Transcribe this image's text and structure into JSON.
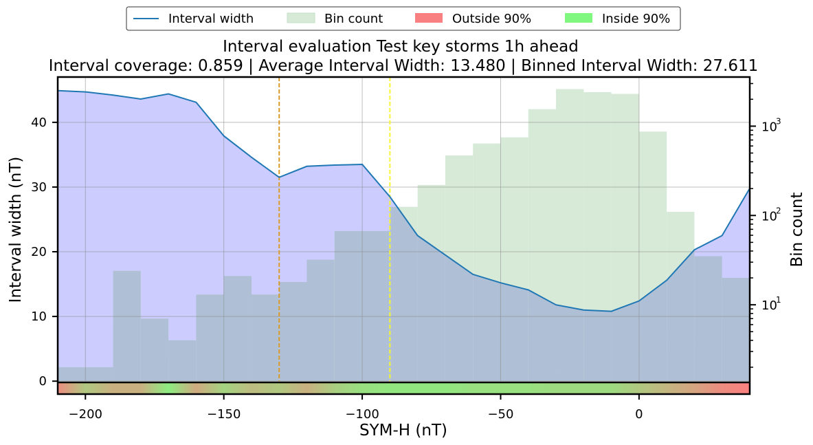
{
  "chart_data": {
    "type": "line",
    "title": "Interval evaluation Test key storms 1h ahead",
    "subtitle": "Interval coverage: 0.859 | Average Interval Width: 13.480 | Binned Interval Width: 27.611",
    "xlabel": "SYM-H (nT)",
    "ylabel": "Interval width (nT)",
    "y2label": "Bin count",
    "xlim": [
      -210,
      40
    ],
    "ylim": [
      -2,
      47
    ],
    "y2_scale": "log",
    "y2_log_range": [
      0.0,
      3.55
    ],
    "x_ticks": [
      -200,
      -150,
      -100,
      -50,
      0
    ],
    "x_tick_labels": [
      "−200",
      "−150",
      "−100",
      "−50",
      "0"
    ],
    "y_ticks": [
      0,
      10,
      20,
      30,
      40
    ],
    "y_tick_labels": [
      "0",
      "10",
      "20",
      "30",
      "40"
    ],
    "y2_ticks_log": [
      1,
      2,
      3
    ],
    "y2_tick_labels": [
      "10",
      "10",
      "10"
    ],
    "y2_tick_exponents": [
      "1",
      "2",
      "3"
    ],
    "legend": {
      "placement": "top-center",
      "entries": [
        "Interval width",
        "Bin count",
        "Outside 90%",
        "Inside 90%"
      ]
    },
    "colors": {
      "line": "#1f77b4",
      "fill": "#ccccff",
      "bins": "#d7ead8",
      "overlap": "#aebfd6",
      "outside": "#f98080",
      "inside": "#80f880",
      "vline_orange": "#d99a2a",
      "vline_yellow": "#f5f530"
    },
    "interval_width": {
      "name": "Interval width",
      "x": [
        -210,
        -200,
        -190,
        -180,
        -170,
        -160,
        -150,
        -140,
        -130,
        -120,
        -110,
        -100,
        -90,
        -80,
        -70,
        -60,
        -50,
        -40,
        -30,
        -20,
        -10,
        0,
        10,
        20,
        30,
        40
      ],
      "values": [
        44.9,
        44.7,
        44.2,
        43.6,
        44.4,
        43.1,
        37.9,
        34.6,
        31.5,
        33.2,
        33.4,
        33.5,
        28.5,
        22.5,
        19.5,
        16.5,
        15.2,
        14.1,
        11.8,
        11.0,
        10.8,
        12.4,
        15.6,
        20.3,
        22.5,
        29.8
      ]
    },
    "bin_count": {
      "name": "Bin count",
      "bin_edges": [
        -210,
        -190,
        -180,
        -170,
        -160,
        -150,
        -140,
        -130,
        -120,
        -110,
        -100,
        -90,
        -80,
        -70,
        -60,
        -50,
        -40,
        -30,
        -20,
        -10,
        0,
        10,
        20,
        30,
        40
      ],
      "counts": [
        2,
        24,
        7,
        4,
        13,
        21,
        13,
        18,
        32,
        67,
        67,
        125,
        220,
        470,
        640,
        750,
        1550,
        2600,
        2400,
        2300,
        870,
        110,
        35,
        20
      ]
    },
    "vertical_lines": [
      {
        "x": -130,
        "label": "orange dashed"
      },
      {
        "x": -90,
        "label": "yellow dashed"
      }
    ],
    "coverage_strip": {
      "x": [
        -210,
        -200,
        -190,
        -180,
        -170,
        -160,
        -150,
        -140,
        -130,
        -120,
        -110,
        -100,
        -90,
        -80,
        -70,
        -60,
        -50,
        -40,
        -30,
        -20,
        -10,
        0,
        10,
        20,
        30,
        40
      ],
      "inside_fraction": [
        0.1,
        0.6,
        0.4,
        0.4,
        0.9,
        0.35,
        0.7,
        0.5,
        0.6,
        0.4,
        0.65,
        0.8,
        0.85,
        0.85,
        0.85,
        0.8,
        0.8,
        0.8,
        0.75,
        0.75,
        0.75,
        0.6,
        0.45,
        0.3,
        0.1,
        0.0
      ]
    }
  }
}
